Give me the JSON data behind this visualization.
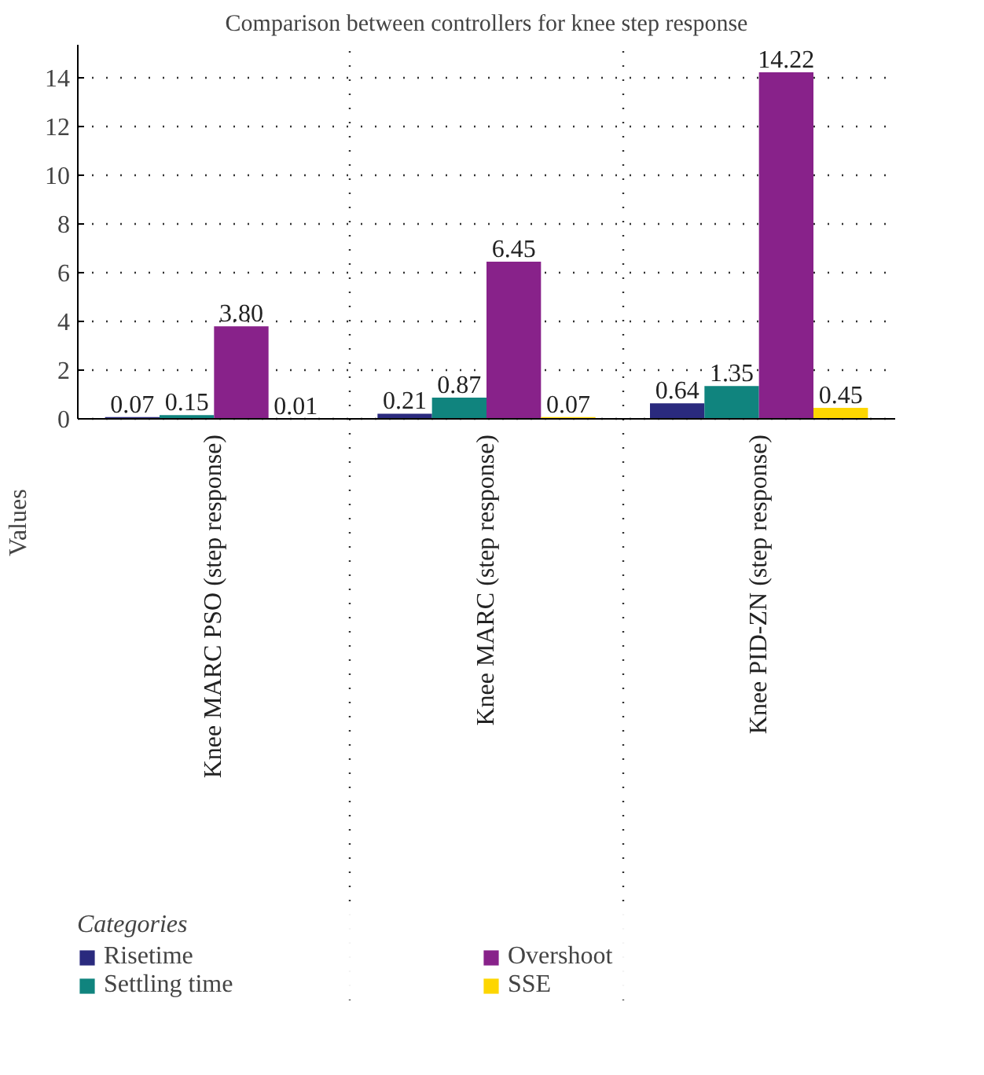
{
  "chart_data": {
    "type": "bar",
    "title": "Comparison between controllers for knee step response",
    "ylabel": "Values",
    "legend_title": "Categories",
    "categories": [
      "Knee MARC PSO (step response)",
      "Knee MARC (step response)",
      "Knee PID-ZN (step response)"
    ],
    "series": [
      {
        "name": "Risetime",
        "color": "#2a2a7e",
        "values": [
          0.07,
          0.21,
          0.64
        ],
        "value_labels": [
          "0.07",
          "0.21",
          "0.64"
        ]
      },
      {
        "name": "Settling time",
        "color": "#10847e",
        "values": [
          0.15,
          0.87,
          1.35
        ],
        "value_labels": [
          "0.15",
          "0.87",
          "1.35"
        ]
      },
      {
        "name": "Overshoot",
        "color": "#88228a",
        "values": [
          3.8,
          6.45,
          14.22
        ],
        "value_labels": [
          "3.80",
          "6.45",
          "14.22"
        ]
      },
      {
        "name": "SSE",
        "color": "#fdd600",
        "values": [
          0.01,
          0.07,
          0.45
        ],
        "value_labels": [
          "0.01",
          "0.07",
          "0.45"
        ]
      }
    ],
    "ylim": [
      0,
      15.35
    ],
    "yticks": [
      0,
      2,
      4,
      6,
      8,
      10,
      12,
      14
    ],
    "grid": true,
    "legend": "bottom"
  }
}
